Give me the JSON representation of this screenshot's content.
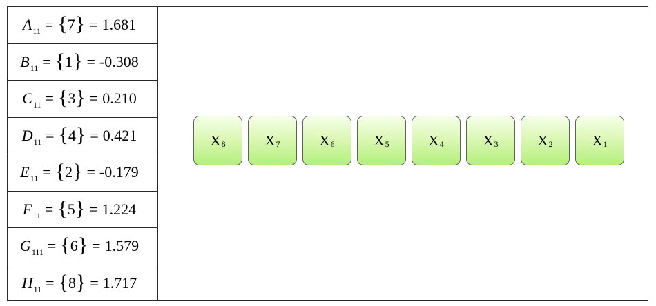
{
  "equations": [
    {
      "var": "A",
      "sub": "11",
      "set": "7",
      "value": "1.681"
    },
    {
      "var": "B",
      "sub": "11",
      "set": "1",
      "value": "-0.308"
    },
    {
      "var": "C",
      "sub": "11",
      "set": "3",
      "value": "0.210"
    },
    {
      "var": "D",
      "sub": "11",
      "set": "4",
      "value": "0.421"
    },
    {
      "var": "E",
      "sub": "11",
      "set": "2",
      "value": "-0.179"
    },
    {
      "var": "F",
      "sub": "11",
      "set": "5",
      "value": "1.224"
    },
    {
      "var": "G",
      "sub": "111",
      "set": "6",
      "value": "1.579"
    },
    {
      "var": "H",
      "sub": "11",
      "set": "8",
      "value": "1.717"
    }
  ],
  "boxes": [
    {
      "label": "X",
      "sub": "8"
    },
    {
      "label": "X",
      "sub": "7"
    },
    {
      "label": "X",
      "sub": "6"
    },
    {
      "label": "X",
      "sub": "5"
    },
    {
      "label": "X",
      "sub": "4"
    },
    {
      "label": "X",
      "sub": "3"
    },
    {
      "label": "X",
      "sub": "2"
    },
    {
      "label": "X",
      "sub": "1"
    }
  ],
  "symbols": {
    "equals": "=",
    "brace_open": "{",
    "brace_close": "}"
  }
}
